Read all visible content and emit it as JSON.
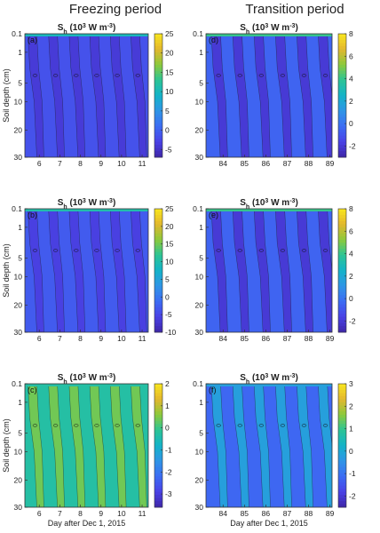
{
  "headers": {
    "left": "Freezing period",
    "right": "Transition period"
  },
  "panel_title": {
    "main": "S",
    "sub": "h",
    "units_open": " (10",
    "sup": "3",
    "units_close": " W m",
    "sup2": "-3",
    "end": ")"
  },
  "palette": [
    "#3e26a8",
    "#4a42e6",
    "#3c6cf3",
    "#2f95e6",
    "#14b3c8",
    "#2cc495",
    "#8dc93b",
    "#e3b72e",
    "#f9e71e"
  ],
  "chart_data": [
    {
      "id": "a",
      "panel_label": "(a)",
      "type": "heatmap",
      "ylabel": "Soil depth (cm)",
      "yticks": [
        0.1,
        1,
        5,
        10,
        20,
        30
      ],
      "xticks": [
        6,
        7,
        8,
        9,
        10,
        11
      ],
      "xlim": [
        5.3,
        11.3
      ],
      "colorbar": {
        "min": -7,
        "max": 25,
        "ticks": [
          -5,
          0,
          5,
          10,
          15,
          20,
          25
        ]
      },
      "background_value": -1.5,
      "band_value": -4,
      "surface_value": 10
    },
    {
      "id": "d",
      "panel_label": "(d)",
      "type": "heatmap",
      "ylabel": "",
      "yticks": [
        0.1,
        1,
        5,
        10,
        20,
        30
      ],
      "xticks": [
        84,
        85,
        86,
        87,
        88,
        89
      ],
      "xlim": [
        83.2,
        89.1
      ],
      "colorbar": {
        "min": -3,
        "max": 8,
        "ticks": [
          -2,
          0,
          2,
          4,
          6,
          8
        ]
      },
      "background_value": -0.5,
      "band_value": -2,
      "surface_value": 4
    },
    {
      "id": "b",
      "panel_label": "(b)",
      "type": "heatmap",
      "ylabel": "Soil depth (cm)",
      "yticks": [
        0.1,
        1,
        5,
        10,
        20,
        30
      ],
      "xticks": [
        6,
        7,
        8,
        9,
        10,
        11
      ],
      "xlim": [
        5.3,
        11.3
      ],
      "colorbar": {
        "min": -10,
        "max": 25,
        "ticks": [
          -10,
          -5,
          0,
          5,
          10,
          15,
          20,
          25
        ]
      },
      "background_value": -3,
      "band_value": -6,
      "surface_value": 10
    },
    {
      "id": "e",
      "panel_label": "(e)",
      "type": "heatmap",
      "ylabel": "",
      "yticks": [
        0.1,
        1,
        5,
        10,
        20,
        30
      ],
      "xticks": [
        84,
        85,
        86,
        87,
        88,
        89
      ],
      "xlim": [
        83.2,
        89.1
      ],
      "colorbar": {
        "min": -3,
        "max": 8,
        "ticks": [
          -2,
          0,
          2,
          4,
          6,
          8
        ]
      },
      "background_value": -0.5,
      "band_value": -2,
      "surface_value": 4
    },
    {
      "id": "c",
      "panel_label": "(c)",
      "type": "heatmap",
      "ylabel": "Soil depth (cm)",
      "xlabel": "Day after Dec  1, 2015",
      "yticks": [
        0.1,
        1,
        5,
        10,
        20,
        30
      ],
      "xticks": [
        6,
        7,
        8,
        9,
        10,
        11
      ],
      "xlim": [
        5.3,
        11.3
      ],
      "colorbar": {
        "min": -3.6,
        "max": 2,
        "ticks": [
          -3,
          -2,
          -1,
          0,
          1,
          2
        ]
      },
      "background_value": -0.3,
      "band_value": 0.4,
      "surface_value": -0.3
    },
    {
      "id": "f",
      "panel_label": "(f)",
      "type": "heatmap",
      "ylabel": "",
      "xlabel": "Day after Dec  1, 2015",
      "yticks": [
        0.1,
        1,
        5,
        10,
        20,
        30
      ],
      "xticks": [
        84,
        85,
        86,
        87,
        88,
        89
      ],
      "xlim": [
        83.2,
        89.1
      ],
      "colorbar": {
        "min": -2.5,
        "max": 3,
        "ticks": [
          -2,
          -1,
          0,
          1,
          2,
          3
        ]
      },
      "background_value": -1.2,
      "band_value": -0.2,
      "surface_value": -0.2
    }
  ]
}
